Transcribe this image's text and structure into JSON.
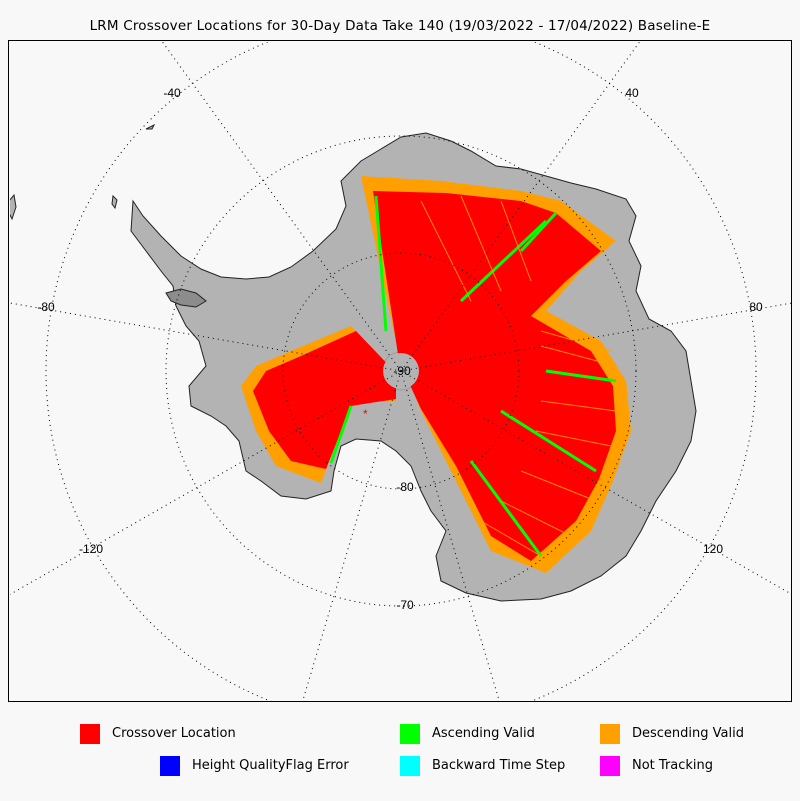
{
  "title": "LRM Crossover Locations for 30-Day Data Take 140 (19/03/2022 - 17/04/2022) Baseline-E",
  "map": {
    "projection": "south-polar-stereographic",
    "pole_label": "-90",
    "latitude_labels": [
      "-80",
      "-70"
    ],
    "longitude_labels": [
      "-40",
      "40",
      "-80",
      "80",
      "-120",
      "120"
    ],
    "land_color": "#b3b3b3",
    "graticule": "dotted"
  },
  "legend": [
    {
      "label": "Crossover Location",
      "color": "#ff0000"
    },
    {
      "label": "Ascending Valid",
      "color": "#00ff00"
    },
    {
      "label": "Descending Valid",
      "color": "#ffa000"
    },
    {
      "label": "Height QualityFlag Error",
      "color": "#0000ff"
    },
    {
      "label": "Backward Time Step",
      "color": "#00ffff"
    },
    {
      "label": "Not Tracking",
      "color": "#ff00ff"
    }
  ]
}
